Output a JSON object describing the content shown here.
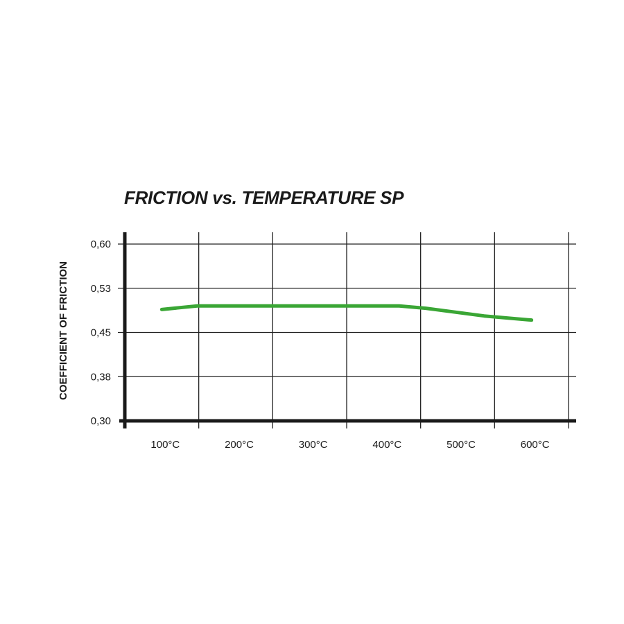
{
  "chart_data": {
    "type": "line",
    "title": "FRICTION vs. TEMPERATURE SP",
    "ylabel": "COEFFICIENT OF FRICTION",
    "xlabel": "",
    "x_unit": "°C",
    "xlim": [
      50,
      650
    ],
    "ylim": [
      0.3,
      0.6
    ],
    "x_tick_labels": [
      "100°C",
      "200°C",
      "300°C",
      "400°C",
      "500°C",
      "600°C"
    ],
    "x_tick_values": [
      100,
      200,
      300,
      400,
      500,
      600
    ],
    "y_tick_labels": [
      "0,30",
      "0,38",
      "0,45",
      "0,53",
      "0,60"
    ],
    "y_tick_values": [
      0.3,
      0.375,
      0.45,
      0.525,
      0.6
    ],
    "grid": true,
    "series": [
      {
        "color": "#3aa635",
        "x": [
          100,
          148,
          421,
          457,
          536,
          600
        ],
        "y": [
          0.489,
          0.495,
          0.495,
          0.491,
          0.478,
          0.471
        ]
      }
    ]
  }
}
